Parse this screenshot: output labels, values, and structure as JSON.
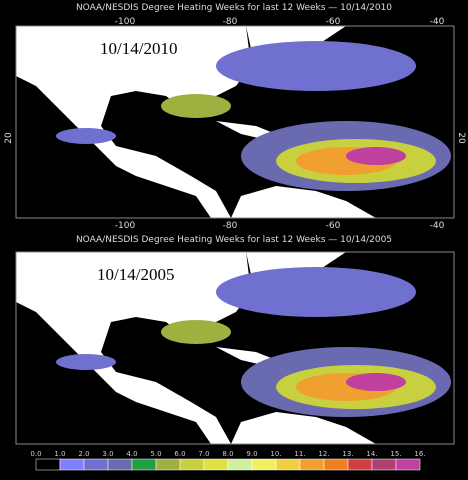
{
  "panels": [
    {
      "title": "NOAA/NESDIS Degree Heating Weeks for last 12 Weeks —  10/14/2010",
      "date": "10/14/2010",
      "lon_ticks": [
        "-100",
        "-80",
        "-60",
        "-40"
      ],
      "lat_ticks": [
        "20"
      ]
    },
    {
      "title": "NOAA/NESDIS Degree Heating Weeks for last 12 Weeks —  10/14/2005",
      "date": "10/14/2005",
      "lon_ticks": [],
      "lat_ticks": []
    }
  ],
  "colorbar": {
    "labels": [
      "0.0",
      "1.0",
      "2.0",
      "3.0",
      "4.0",
      "5.0",
      "6.0",
      "7.0",
      "8.0",
      "9.0",
      "10.",
      "11.",
      "12.",
      "13.",
      "14.",
      "15.",
      "16."
    ],
    "colors": [
      "#000000",
      "#8080ff",
      "#7070d0",
      "#6a6ab0",
      "#20a040",
      "#a0b040",
      "#c8d040",
      "#e0e040",
      "#d0f0a0",
      "#f0f060",
      "#f0d040",
      "#f0a030",
      "#f08020",
      "#d04040",
      "#b04070",
      "#c040a0",
      "#d040d0"
    ]
  }
}
